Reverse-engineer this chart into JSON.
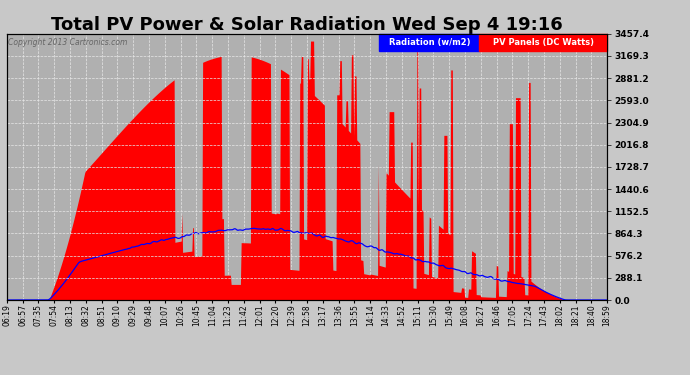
{
  "title": "Total PV Power & Solar Radiation Wed Sep 4 19:16",
  "copyright": "Copyright 2013 Cartronics.com",
  "ylabel_right_values": [
    0.0,
    288.1,
    576.2,
    864.3,
    1152.5,
    1440.6,
    1728.7,
    2016.8,
    2304.9,
    2593.0,
    2881.2,
    3169.3,
    3457.4
  ],
  "ymax": 3457.4,
  "ymin": 0.0,
  "legend_radiation_label": "Radiation (w/m2)",
  "legend_pv_label": "PV Panels (DC Watts)",
  "fig_bg_color": "#c8c8c8",
  "plot_bg_color": "#b0b0b0",
  "grid_color": "#e8e8e8",
  "title_fontsize": 13,
  "xtick_labels": [
    "06:19",
    "06:57",
    "07:35",
    "07:54",
    "08:13",
    "08:32",
    "08:51",
    "09:10",
    "09:29",
    "09:48",
    "10:07",
    "10:26",
    "10:45",
    "11:04",
    "11:23",
    "11:42",
    "12:01",
    "12:20",
    "12:39",
    "12:58",
    "13:17",
    "13:36",
    "13:55",
    "14:14",
    "14:33",
    "14:52",
    "15:11",
    "15:30",
    "15:49",
    "16:08",
    "16:27",
    "16:46",
    "17:05",
    "17:24",
    "17:43",
    "18:02",
    "18:21",
    "18:40",
    "18:59"
  ],
  "num_points": 780
}
